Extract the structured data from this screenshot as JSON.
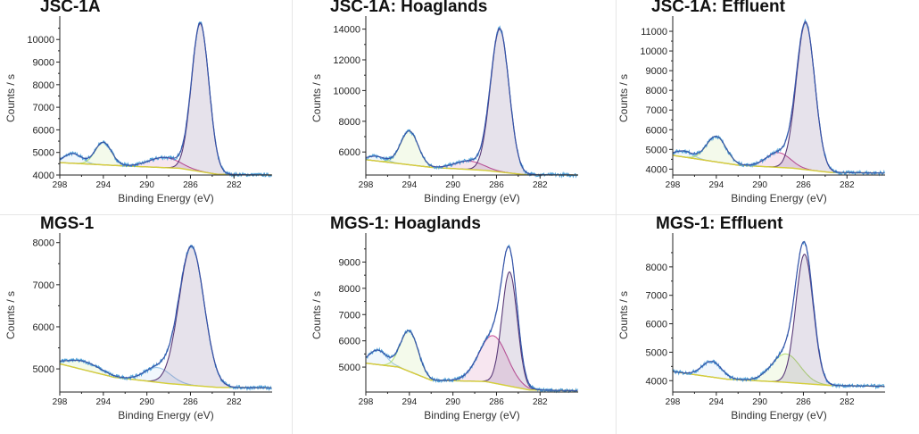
{
  "chart_data": [
    {
      "type": "line",
      "title": "JSC-1A",
      "xlabel": "Binding Energy (eV)",
      "ylabel": "Counts / s",
      "xlim": [
        298,
        278.5
      ],
      "ylim": [
        4000,
        10800
      ],
      "xticks": [
        298,
        294,
        290,
        286,
        282
      ],
      "yticks": [
        4000,
        5000,
        6000,
        7000,
        8000,
        9000,
        10000
      ],
      "baseline": [
        [
          298,
          4550
        ],
        [
          292,
          4400
        ],
        [
          287,
          4300
        ],
        [
          283.5,
          4030
        ],
        [
          278.5,
          4000
        ]
      ],
      "peaks": [
        {
          "center": 296.8,
          "height": 430,
          "sigma": 0.8,
          "color": "#9fc6e8"
        },
        {
          "center": 294.0,
          "height": 1000,
          "sigma": 0.75,
          "color": "#b8e07a"
        },
        {
          "center": 288.4,
          "height": 450,
          "sigma": 1.4,
          "color": "#c8559a"
        },
        {
          "center": 285.1,
          "height": 6550,
          "sigma": 0.8,
          "color": "#5a3a78"
        }
      ]
    },
    {
      "type": "line",
      "title": "JSC-1A: Hoaglands",
      "xlabel": "Binding Energy (eV)",
      "ylabel": "Counts / s",
      "xlim": [
        298,
        278.5
      ],
      "ylim": [
        4500,
        14500
      ],
      "xticks": [
        298,
        294,
        290,
        286,
        282
      ],
      "yticks": [
        6000,
        8000,
        10000,
        12000,
        14000
      ],
      "baseline": [
        [
          298,
          5500
        ],
        [
          292,
          5000
        ],
        [
          287,
          4800
        ],
        [
          283.5,
          4530
        ],
        [
          278.5,
          4500
        ]
      ],
      "peaks": [
        {
          "center": 297.0,
          "height": 300,
          "sigma": 0.8,
          "color": "#9fc6e8"
        },
        {
          "center": 294.0,
          "height": 2200,
          "sigma": 0.8,
          "color": "#b8e07a"
        },
        {
          "center": 288.5,
          "height": 550,
          "sigma": 1.3,
          "color": "#c8559a"
        },
        {
          "center": 285.7,
          "height": 9300,
          "sigma": 0.85,
          "color": "#5a3a78"
        }
      ]
    },
    {
      "type": "line",
      "title": "JSC-1A: Effluent",
      "xlabel": "Binding Energy (eV)",
      "ylabel": "Counts / s",
      "xlim": [
        298,
        278.5
      ],
      "ylim": [
        3700,
        11500
      ],
      "xticks": [
        298,
        294,
        290,
        286,
        282
      ],
      "yticks": [
        4000,
        5000,
        6000,
        7000,
        8000,
        9000,
        10000,
        11000
      ],
      "baseline": [
        [
          298,
          4700
        ],
        [
          292,
          4200
        ],
        [
          287,
          4050
        ],
        [
          283.5,
          3830
        ],
        [
          278.5,
          3800
        ]
      ],
      "peaks": [
        {
          "center": 297.0,
          "height": 300,
          "sigma": 0.8,
          "color": "#9fc6e8"
        },
        {
          "center": 294.0,
          "height": 1300,
          "sigma": 0.9,
          "color": "#b8e07a"
        },
        {
          "center": 288.3,
          "height": 750,
          "sigma": 1.1,
          "color": "#c8559a"
        },
        {
          "center": 285.8,
          "height": 7450,
          "sigma": 0.85,
          "color": "#5a3a78"
        }
      ]
    },
    {
      "type": "line",
      "title": "MGS-1",
      "xlabel": "Binding Energy (eV)",
      "ylabel": "Counts / s",
      "xlim": [
        298,
        278.5
      ],
      "ylim": [
        4450,
        8100
      ],
      "xticks": [
        298,
        294,
        290,
        286,
        282
      ],
      "yticks": [
        5000,
        6000,
        7000,
        8000
      ],
      "baseline": [
        [
          298,
          5120
        ],
        [
          293,
          4800
        ],
        [
          288,
          4650
        ],
        [
          283.5,
          4560
        ],
        [
          278.5,
          4550
        ]
      ],
      "peaks": [
        {
          "center": 295.8,
          "height": 200,
          "sigma": 1.5,
          "color": "#b8e07a"
        },
        {
          "center": 289.0,
          "height": 350,
          "sigma": 1.2,
          "color": "#9fc6e8"
        },
        {
          "center": 285.9,
          "height": 3300,
          "sigma": 1.15,
          "color": "#5a3a78"
        }
      ]
    },
    {
      "type": "line",
      "title": "MGS-1: Hoaglands",
      "xlabel": "Binding Energy (eV)",
      "ylabel": "Counts / s",
      "xlim": [
        298,
        278.5
      ],
      "ylim": [
        4050,
        9900
      ],
      "xticks": [
        298,
        294,
        290,
        286,
        282
      ],
      "yticks": [
        5000,
        6000,
        7000,
        8000,
        9000
      ],
      "baseline": [
        [
          298,
          5150
        ],
        [
          295,
          5000
        ],
        [
          292,
          4500
        ],
        [
          287,
          4450
        ],
        [
          283,
          4130
        ],
        [
          278.5,
          4100
        ]
      ],
      "peaks": [
        {
          "center": 296.9,
          "height": 550,
          "sigma": 0.8,
          "color": "#9fc6e8"
        },
        {
          "center": 294.0,
          "height": 1550,
          "sigma": 0.8,
          "color": "#b8e07a"
        },
        {
          "center": 286.3,
          "height": 1800,
          "sigma": 1.3,
          "color": "#c8559a"
        },
        {
          "center": 284.8,
          "height": 4350,
          "sigma": 0.7,
          "color": "#5a3a78"
        }
      ]
    },
    {
      "type": "line",
      "title": "MGS-1: Effluent",
      "xlabel": "Binding Energy (eV)",
      "ylabel": "Counts / s",
      "xlim": [
        298,
        278.5
      ],
      "ylim": [
        3600,
        9000
      ],
      "xticks": [
        298,
        294,
        290,
        286,
        282
      ],
      "yticks": [
        4000,
        5000,
        6000,
        7000,
        8000
      ],
      "baseline": [
        [
          298,
          4320
        ],
        [
          293,
          4050
        ],
        [
          288,
          3950
        ],
        [
          283.5,
          3830
        ],
        [
          278.5,
          3800
        ]
      ],
      "peaks": [
        {
          "center": 294.4,
          "height": 550,
          "sigma": 0.9,
          "color": "#9fc6e8"
        },
        {
          "center": 287.6,
          "height": 1000,
          "sigma": 1.3,
          "color": "#b8e07a"
        },
        {
          "center": 285.9,
          "height": 4550,
          "sigma": 0.8,
          "color": "#5a3a78"
        }
      ]
    }
  ],
  "colors": {
    "envelope": "#2f3f9a",
    "data": "#4a9fd8",
    "baseline": "#d6cf3a"
  }
}
